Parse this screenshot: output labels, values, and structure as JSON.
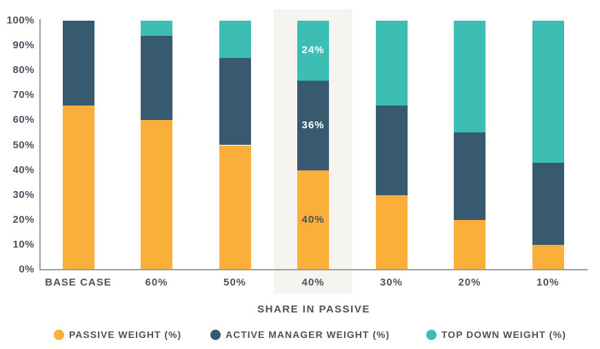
{
  "chart_data": {
    "type": "bar",
    "stacked": true,
    "title": "",
    "categories": [
      "BASE CASE",
      "60%",
      "50%",
      "40%",
      "30%",
      "20%",
      "10%"
    ],
    "series": [
      {
        "name": "PASSIVE WEIGHT (%)",
        "color": "#FAAF3B",
        "values": [
          66,
          60,
          50,
          40,
          30,
          20,
          10
        ]
      },
      {
        "name": "ACTIVE MANAGER WEIGHT (%)",
        "color": "#375A70",
        "values": [
          34,
          34,
          35,
          36,
          36,
          35,
          33
        ]
      },
      {
        "name": "TOP DOWN WEIGHT (%)",
        "color": "#3DBEB4",
        "values": [
          0,
          6,
          15,
          24,
          34,
          45,
          57
        ]
      }
    ],
    "xlabel": "SHARE IN PASSIVE",
    "ylabel": "",
    "ylim": [
      0,
      100
    ],
    "y_ticks": [
      "0%",
      "10%",
      "20%",
      "30%",
      "40%",
      "50%",
      "60%",
      "70%",
      "80%",
      "90%",
      "100%"
    ],
    "grid": false,
    "legend_position": "bottom",
    "highlight": {
      "category": "40%",
      "band_color": "#F5F4F1",
      "segment_labels": [
        "40%",
        "36%",
        "24%"
      ],
      "segment_label_colors": [
        "#4A545E",
        "#FFFFFF",
        "#FFFFFF"
      ]
    }
  },
  "colors": {
    "text": "#4A545E",
    "axis_line": "#9E9E9E",
    "background": "#FFFFFF"
  }
}
